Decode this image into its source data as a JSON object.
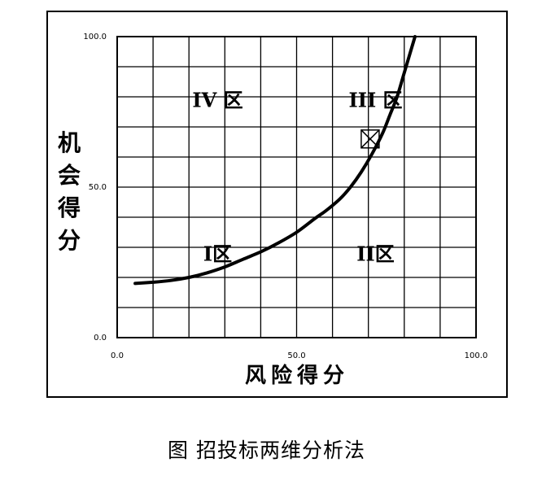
{
  "chart_data": {
    "type": "line",
    "xlabel": "风险得分",
    "ylabel": "机会得分",
    "xlim": [
      0,
      100
    ],
    "ylim": [
      0,
      100
    ],
    "x_ticks": [
      "0.0",
      "50.0",
      "100.0"
    ],
    "y_ticks": [
      "0.0",
      "50.0",
      "100.0"
    ],
    "grid": true,
    "series": [
      {
        "x": [
          5,
          10,
          15,
          20,
          25,
          30,
          35,
          40,
          45,
          50,
          55,
          58,
          62,
          65,
          68,
          71,
          74,
          76,
          78,
          80,
          81.5,
          83
        ],
        "y": [
          18,
          18.4,
          19,
          20,
          21.5,
          23.5,
          26,
          28.5,
          31.5,
          35,
          39.5,
          42,
          46,
          50,
          55,
          61,
          68,
          74,
          80,
          88,
          94,
          100
        ]
      }
    ],
    "annotations": [
      {
        "text": "IV 区",
        "x": 28,
        "y": 79
      },
      {
        "text": "III 区",
        "x": 72,
        "y": 79
      },
      {
        "text": "I区",
        "x": 28,
        "y": 28
      },
      {
        "text": "II区",
        "x": 72,
        "y": 28
      }
    ],
    "marker": {
      "label": "X",
      "x": 70.5,
      "y": 66
    }
  },
  "caption": "图  招投标两维分析法"
}
